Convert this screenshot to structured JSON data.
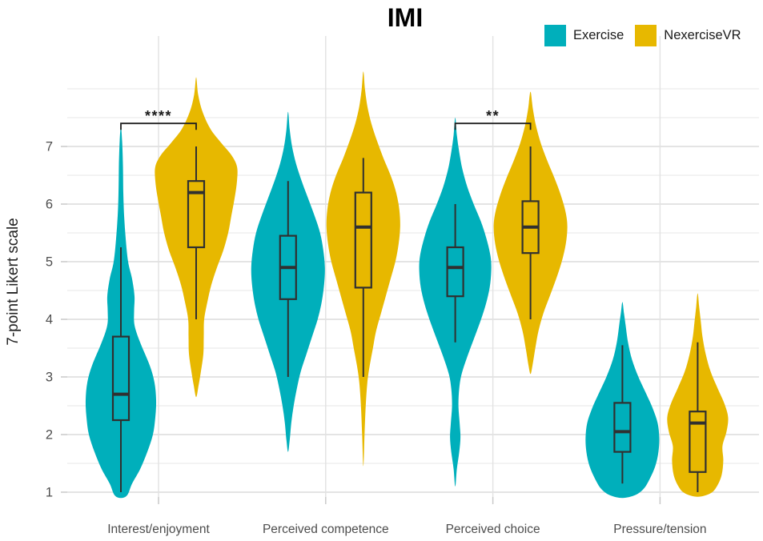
{
  "chart_data": {
    "type": "violin",
    "title": "IMI",
    "ylabel": "7-point Likert scale",
    "yticks": [
      1,
      2,
      3,
      4,
      5,
      6,
      7
    ],
    "ylim_display": [
      0.9,
      8.5
    ],
    "grid": {
      "major_every": 1,
      "minor_every": 0.5,
      "vertical_at_categories": true
    },
    "legend_position": "top-right",
    "groups": [
      {
        "name": "Exercise",
        "color": "#00AFBB"
      },
      {
        "name": "NexerciseVR",
        "color": "#E7B800"
      }
    ],
    "categories": [
      "Interest/enjoyment",
      "Perceived competence",
      "Perceived choice",
      "Pressure/tension"
    ],
    "violins": [
      {
        "category": "Interest/enjoyment",
        "group": "Exercise",
        "box": {
          "whisker_low": 1.0,
          "q1": 2.25,
          "median": 2.7,
          "q3": 3.7,
          "whisker_high": 5.25
        },
        "outline": [
          [
            7.35,
            0
          ],
          [
            7.1,
            1.5
          ],
          [
            6.7,
            2.5
          ],
          [
            6.2,
            3
          ],
          [
            5.8,
            4
          ],
          [
            5.4,
            6
          ],
          [
            5.0,
            9
          ],
          [
            4.7,
            14
          ],
          [
            4.4,
            17
          ],
          [
            4.15,
            16.5
          ],
          [
            3.9,
            17
          ],
          [
            3.6,
            24
          ],
          [
            3.2,
            36
          ],
          [
            2.9,
            42
          ],
          [
            2.6,
            44
          ],
          [
            2.3,
            43
          ],
          [
            2.0,
            40
          ],
          [
            1.7,
            33
          ],
          [
            1.4,
            24
          ],
          [
            1.15,
            14
          ],
          [
            0.95,
            8
          ],
          [
            0.9,
            0
          ]
        ]
      },
      {
        "category": "Interest/enjoyment",
        "group": "NexerciseVR",
        "box": {
          "whisker_low": 4.0,
          "q1": 5.25,
          "median": 6.2,
          "q3": 6.4,
          "whisker_high": 7.0
        },
        "outline": [
          [
            8.2,
            0
          ],
          [
            7.9,
            2.5
          ],
          [
            7.6,
            8
          ],
          [
            7.3,
            18
          ],
          [
            7.05,
            32
          ],
          [
            6.85,
            44
          ],
          [
            6.65,
            51
          ],
          [
            6.4,
            51
          ],
          [
            6.1,
            48
          ],
          [
            5.8,
            44
          ],
          [
            5.5,
            40
          ],
          [
            5.2,
            34
          ],
          [
            4.9,
            26
          ],
          [
            4.6,
            19
          ],
          [
            4.3,
            14
          ],
          [
            4.0,
            10
          ],
          [
            3.7,
            9.5
          ],
          [
            3.4,
            9
          ],
          [
            3.1,
            6
          ],
          [
            2.85,
            3
          ],
          [
            2.65,
            0
          ]
        ]
      },
      {
        "category": "Perceived competence",
        "group": "Exercise",
        "box": {
          "whisker_low": 3.0,
          "q1": 4.35,
          "median": 4.9,
          "q3": 5.45,
          "whisker_high": 6.4
        },
        "outline": [
          [
            7.6,
            0
          ],
          [
            7.3,
            2
          ],
          [
            7.0,
            5
          ],
          [
            6.7,
            10
          ],
          [
            6.4,
            17
          ],
          [
            6.1,
            25
          ],
          [
            5.8,
            33
          ],
          [
            5.5,
            40
          ],
          [
            5.2,
            44
          ],
          [
            4.9,
            46
          ],
          [
            4.6,
            45
          ],
          [
            4.3,
            42
          ],
          [
            4.0,
            37
          ],
          [
            3.7,
            30
          ],
          [
            3.4,
            23
          ],
          [
            3.1,
            16
          ],
          [
            2.8,
            11
          ],
          [
            2.5,
            7
          ],
          [
            2.2,
            4
          ],
          [
            1.9,
            2
          ],
          [
            1.7,
            0
          ]
        ]
      },
      {
        "category": "Perceived competence",
        "group": "NexerciseVR",
        "box": {
          "whisker_low": 3.0,
          "q1": 4.55,
          "median": 5.6,
          "q3": 6.2,
          "whisker_high": 6.8
        },
        "outline": [
          [
            8.3,
            0
          ],
          [
            8.0,
            2
          ],
          [
            7.7,
            5
          ],
          [
            7.4,
            10
          ],
          [
            7.1,
            17
          ],
          [
            6.8,
            25
          ],
          [
            6.5,
            34
          ],
          [
            6.2,
            41
          ],
          [
            5.9,
            45
          ],
          [
            5.6,
            46
          ],
          [
            5.3,
            44
          ],
          [
            5.0,
            40
          ],
          [
            4.7,
            34
          ],
          [
            4.4,
            28
          ],
          [
            4.1,
            22
          ],
          [
            3.8,
            16
          ],
          [
            3.5,
            12
          ],
          [
            3.2,
            8
          ],
          [
            2.9,
            5
          ],
          [
            2.5,
            3
          ],
          [
            2.0,
            1.5
          ],
          [
            1.45,
            0
          ]
        ]
      },
      {
        "category": "Perceived choice",
        "group": "Exercise",
        "box": {
          "whisker_low": 3.6,
          "q1": 4.4,
          "median": 4.9,
          "q3": 5.25,
          "whisker_high": 6.0
        },
        "outline": [
          [
            7.5,
            0
          ],
          [
            7.2,
            2
          ],
          [
            6.9,
            5
          ],
          [
            6.6,
            9
          ],
          [
            6.3,
            15
          ],
          [
            6.0,
            23
          ],
          [
            5.7,
            32
          ],
          [
            5.4,
            39
          ],
          [
            5.1,
            44
          ],
          [
            4.85,
            45
          ],
          [
            4.55,
            43
          ],
          [
            4.25,
            38
          ],
          [
            3.95,
            31
          ],
          [
            3.65,
            23
          ],
          [
            3.35,
            15
          ],
          [
            3.05,
            8
          ],
          [
            2.8,
            5
          ],
          [
            2.5,
            4
          ],
          [
            2.2,
            5.5
          ],
          [
            1.95,
            6.5
          ],
          [
            1.7,
            5
          ],
          [
            1.4,
            2
          ],
          [
            1.1,
            0
          ]
        ]
      },
      {
        "category": "Perceived choice",
        "group": "NexerciseVR",
        "box": {
          "whisker_low": 4.0,
          "q1": 5.15,
          "median": 5.6,
          "q3": 6.05,
          "whisker_high": 7.0
        },
        "outline": [
          [
            7.95,
            0
          ],
          [
            7.65,
            3
          ],
          [
            7.35,
            7
          ],
          [
            7.05,
            13
          ],
          [
            6.75,
            21
          ],
          [
            6.45,
            30
          ],
          [
            6.15,
            38
          ],
          [
            5.85,
            44
          ],
          [
            5.6,
            46
          ],
          [
            5.3,
            44
          ],
          [
            5.0,
            39
          ],
          [
            4.7,
            32
          ],
          [
            4.4,
            24
          ],
          [
            4.1,
            16
          ],
          [
            3.8,
            10
          ],
          [
            3.5,
            6
          ],
          [
            3.2,
            2.5
          ],
          [
            3.05,
            0
          ]
        ]
      },
      {
        "category": "Pressure/tension",
        "group": "Exercise",
        "box": {
          "whisker_low": 1.15,
          "q1": 1.7,
          "median": 2.05,
          "q3": 2.55,
          "whisker_high": 3.55
        },
        "outline": [
          [
            4.3,
            0
          ],
          [
            4.1,
            2
          ],
          [
            3.9,
            4
          ],
          [
            3.6,
            7
          ],
          [
            3.3,
            12
          ],
          [
            3.0,
            20
          ],
          [
            2.7,
            30
          ],
          [
            2.45,
            38
          ],
          [
            2.2,
            44
          ],
          [
            1.95,
            46
          ],
          [
            1.7,
            45
          ],
          [
            1.45,
            41
          ],
          [
            1.2,
            33
          ],
          [
            1.05,
            26
          ],
          [
            0.95,
            16
          ],
          [
            0.9,
            0
          ]
        ]
      },
      {
        "category": "Pressure/tension",
        "group": "NexerciseVR",
        "box": {
          "whisker_low": 1.0,
          "q1": 1.35,
          "median": 2.2,
          "q3": 2.4,
          "whisker_high": 3.6
        },
        "outline": [
          [
            4.45,
            0
          ],
          [
            4.2,
            2
          ],
          [
            3.95,
            4
          ],
          [
            3.7,
            6
          ],
          [
            3.4,
            10
          ],
          [
            3.1,
            16
          ],
          [
            2.8,
            25
          ],
          [
            2.55,
            33
          ],
          [
            2.3,
            38
          ],
          [
            2.05,
            36
          ],
          [
            1.8,
            31
          ],
          [
            1.55,
            32
          ],
          [
            1.3,
            30
          ],
          [
            1.1,
            24
          ],
          [
            0.98,
            16
          ],
          [
            0.92,
            0
          ]
        ]
      }
    ],
    "significance": [
      {
        "category": "Interest/enjoyment",
        "label": "****",
        "at_value": 7.4
      },
      {
        "category": "Perceived choice",
        "label": "**",
        "at_value": 7.4
      }
    ]
  }
}
